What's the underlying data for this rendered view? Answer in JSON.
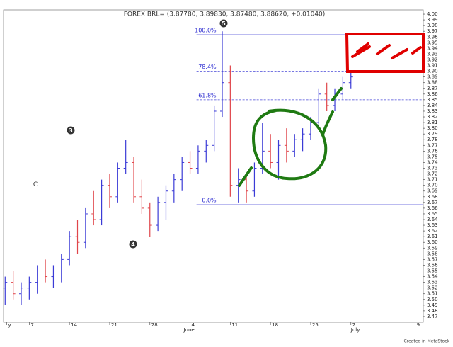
{
  "chart_data": {
    "type": "ohlc",
    "title": "FOREX BRL= (3.87780, 3.89830, 3.87480, 3.88620, +0.01040)",
    "footer": "Created in MetaStock",
    "up_color": "#3b3bd6",
    "down_color": "#e0454a",
    "x": [
      -3,
      -2,
      -1,
      0,
      1,
      2,
      3,
      4,
      5,
      6,
      7,
      8,
      9,
      10,
      11,
      12,
      13,
      14,
      15,
      16,
      17,
      18,
      19,
      20,
      21,
      22,
      23,
      24,
      25,
      26,
      27,
      28,
      29,
      30,
      31,
      32,
      33,
      34,
      35,
      36,
      37,
      38,
      39,
      40
    ],
    "open": [
      3.52,
      3.53,
      3.51,
      3.52,
      3.53,
      3.55,
      3.54,
      3.55,
      3.57,
      3.61,
      3.6,
      3.65,
      3.64,
      3.7,
      3.68,
      3.73,
      3.74,
      3.68,
      3.66,
      3.63,
      3.67,
      3.69,
      3.71,
      3.74,
      3.73,
      3.76,
      3.77,
      3.83,
      3.88,
      3.7,
      3.71,
      3.69,
      3.73,
      3.76,
      3.74,
      3.77,
      3.76,
      3.78,
      3.79,
      3.81,
      3.86,
      3.84,
      3.86,
      3.88
    ],
    "high": [
      3.54,
      3.55,
      3.53,
      3.54,
      3.56,
      3.57,
      3.56,
      3.58,
      3.62,
      3.64,
      3.66,
      3.69,
      3.71,
      3.72,
      3.74,
      3.78,
      3.75,
      3.71,
      3.67,
      3.68,
      3.7,
      3.72,
      3.75,
      3.76,
      3.77,
      3.78,
      3.84,
      3.97,
      3.91,
      3.73,
      3.72,
      3.74,
      3.81,
      3.79,
      3.78,
      3.8,
      3.79,
      3.8,
      3.82,
      3.87,
      3.88,
      3.87,
      3.89,
      3.9
    ],
    "low": [
      3.49,
      3.5,
      3.49,
      3.5,
      3.51,
      3.53,
      3.52,
      3.53,
      3.56,
      3.58,
      3.59,
      3.63,
      3.63,
      3.66,
      3.67,
      3.72,
      3.67,
      3.65,
      3.61,
      3.62,
      3.64,
      3.67,
      3.69,
      3.72,
      3.72,
      3.74,
      3.76,
      3.82,
      3.68,
      3.67,
      3.67,
      3.68,
      3.72,
      3.73,
      3.71,
      3.74,
      3.75,
      3.76,
      3.78,
      3.8,
      3.83,
      3.83,
      3.85,
      3.87
    ],
    "close": [
      3.53,
      3.51,
      3.52,
      3.53,
      3.55,
      3.54,
      3.55,
      3.57,
      3.61,
      3.6,
      3.65,
      3.64,
      3.7,
      3.68,
      3.73,
      3.74,
      3.68,
      3.66,
      3.63,
      3.67,
      3.69,
      3.71,
      3.74,
      3.73,
      3.76,
      3.77,
      3.83,
      3.88,
      3.7,
      3.71,
      3.69,
      3.73,
      3.76,
      3.74,
      3.77,
      3.76,
      3.78,
      3.79,
      3.81,
      3.86,
      3.84,
      3.86,
      3.88,
      3.89
    ],
    "xlim": [
      -3.2,
      49
    ],
    "xticks": [
      {
        "value": -2.8,
        "label": "y"
      },
      {
        "value": 0,
        "label": "7"
      },
      {
        "value": 5,
        "label": "14"
      },
      {
        "value": 10,
        "label": "21"
      },
      {
        "value": 15,
        "label": "28"
      },
      {
        "value": 20,
        "label": "4"
      },
      {
        "value": 25,
        "label": "11"
      },
      {
        "value": 30,
        "label": "18"
      },
      {
        "value": 35,
        "label": "25"
      },
      {
        "value": 40,
        "label": "2"
      },
      {
        "value": 48,
        "label": "9"
      }
    ],
    "month_labels": [
      {
        "value": 19.2,
        "label": "June"
      },
      {
        "value": 40,
        "label": "July"
      }
    ],
    "ylim": [
      3.46,
      4.0075
    ],
    "yticks": [
      {
        "value": 4.0,
        "label": "4.00"
      },
      3.99,
      3.98,
      3.97,
      3.96,
      3.95,
      3.94,
      3.93,
      3.92,
      3.91,
      {
        "value": 3.9,
        "label": "3.90"
      },
      3.89,
      3.88,
      3.87,
      3.86,
      3.85,
      3.84,
      3.83,
      3.82,
      3.81,
      {
        "value": 3.8,
        "label": "3.80"
      },
      3.79,
      3.78,
      3.77,
      3.76,
      3.75,
      3.74,
      3.73,
      3.72,
      3.71,
      {
        "value": 3.7,
        "label": "3.70"
      },
      3.69,
      3.68,
      3.67,
      3.66,
      3.65,
      3.64,
      3.63,
      3.62,
      3.61,
      {
        "value": 3.6,
        "label": "3.60"
      },
      3.59,
      3.58,
      3.57,
      3.56,
      3.55,
      3.54,
      3.53,
      3.52,
      3.51,
      {
        "value": 3.5,
        "label": "3.50"
      },
      3.49,
      3.48,
      3.47
    ],
    "fib_levels": [
      {
        "label": "100.0%",
        "price": 3.964,
        "dashed": false
      },
      {
        "label": "78.4%",
        "price": 3.9,
        "dashed": true
      },
      {
        "label": "61.8%",
        "price": 3.85,
        "dashed": true
      },
      {
        "label": "0.0%",
        "price": 3.666,
        "dashed": false
      }
    ],
    "fib_start": 20.8,
    "fib_color": "#4a4ad8",
    "wave_labels": [
      "C",
      "3",
      "4",
      "5"
    ]
  }
}
